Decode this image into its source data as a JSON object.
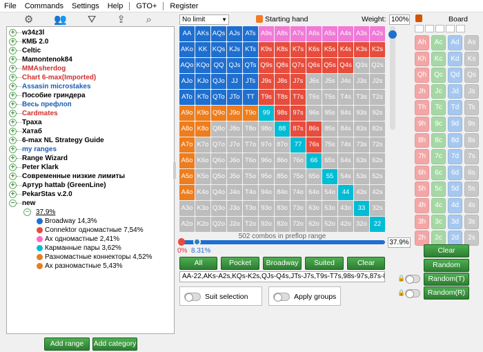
{
  "menu": {
    "items": [
      "File",
      "Commands",
      "Settings",
      "Help",
      "GTO+",
      "Register"
    ]
  },
  "toolbar": {
    "icons": [
      "gear-icon",
      "users-icon",
      "filter-icon",
      "export-icon",
      "search-icon"
    ]
  },
  "tree": {
    "items": [
      {
        "label": "w34z3l",
        "color": "blk",
        "toggle": "+"
      },
      {
        "label": "КМБ 2.0",
        "color": "blk",
        "toggle": "+"
      },
      {
        "label": "Celtic",
        "color": "blk",
        "toggle": "+"
      },
      {
        "label": "Mamontenok84",
        "color": "blk",
        "toggle": "+"
      },
      {
        "label": "MMAsherdog",
        "color": "red",
        "toggle": "+"
      },
      {
        "label": "Chart 6-max(Imported)",
        "color": "red",
        "toggle": "+"
      },
      {
        "label": "Assasin microstakes",
        "color": "blu",
        "toggle": "+"
      },
      {
        "label": "Пособие гриндера",
        "color": "blk",
        "toggle": "+"
      },
      {
        "label": "Весь префлоп",
        "color": "blu",
        "toggle": "+"
      },
      {
        "label": "Cardmates",
        "color": "red",
        "toggle": "+"
      },
      {
        "label": "Траха",
        "color": "blk",
        "toggle": "+"
      },
      {
        "label": "Хатаб",
        "color": "blk",
        "toggle": "+"
      },
      {
        "label": "6-max NL Strategy Guide",
        "color": "blk",
        "toggle": "+"
      },
      {
        "label": "my ranges",
        "color": "blu",
        "toggle": "+"
      },
      {
        "label": "Range Wizard",
        "color": "blk",
        "toggle": "+"
      },
      {
        "label": "Peter Klark",
        "color": "blk",
        "toggle": "+"
      },
      {
        "label": "Современные низкие лимиты",
        "color": "blk",
        "toggle": "+"
      },
      {
        "label": "Артур hattab (GreenLine)",
        "color": "blk",
        "toggle": "+"
      },
      {
        "label": "PekarStas v.2.0",
        "color": "blk",
        "toggle": "+"
      },
      {
        "label": "new",
        "color": "blk",
        "toggle": "−"
      }
    ],
    "node_label": "37.9%",
    "subitems": [
      {
        "label": "Broadway 14,3%",
        "color": "#1e6fd0"
      },
      {
        "label": "Connektor одномастные 7,54%",
        "color": "#e74c3c"
      },
      {
        "label": "Ax одномастные 2,41%",
        "color": "#ff66cc"
      },
      {
        "label": "Карманные пары 3,62%",
        "color": "#00bcd4"
      },
      {
        "label": "Разномастные коннекторы 4,52%",
        "color": "#e67e22"
      },
      {
        "label": "Ax разномастные 5,43%",
        "color": "#e67e22"
      }
    ],
    "add_range": "Add range",
    "add_category": "Add category"
  },
  "controls": {
    "limit": "No limit",
    "starting_hand": "Starting hand",
    "weight_label": "Weight:",
    "weight_value": "100%",
    "combos": "502 combos in preflop range",
    "pct_low": "0%",
    "pct_high": "8.31%",
    "pct_box": "37.9%",
    "range_text": "AA-22,AKs-A2s,KQs-K2s,QJs-Q4s,JTs-J7s,T9s-T7s,98s-97s,87s-86s,",
    "buttons": [
      "All",
      "Pocket",
      "Broadway",
      "Suited",
      "Clear"
    ],
    "suit_selection": "Suit selection",
    "apply_groups": "Apply groups"
  },
  "colors": {
    "blue": "#1e6fd0",
    "red": "#e74c3c",
    "pink": "#f07ad6",
    "cyan": "#00bcd4",
    "orange": "#ee7d1d",
    "gray": "#bdbdbd"
  },
  "grid": [
    [
      "AA b",
      "AKs b",
      "AQs b",
      "AJs b",
      "ATs b",
      "A9s p",
      "A8s p",
      "A7s p",
      "A6s p",
      "A5s p",
      "A4s p",
      "A3s p",
      "A2s p"
    ],
    [
      "AKo b",
      "KK b",
      "KQs b",
      "KJs b",
      "KTs b",
      "K9s r",
      "K8s r",
      "K7s r",
      "K6s r",
      "K5s r",
      "K4s r",
      "K3s r",
      "K2s r"
    ],
    [
      "AQo b",
      "KQo b",
      "QQ b",
      "QJs b",
      "QTs b",
      "Q9s r",
      "Q8s r",
      "Q7s r",
      "Q6s r",
      "Q5s r",
      "Q4s r",
      "Q3s g",
      "Q2s g"
    ],
    [
      "AJo b",
      "KJo b",
      "QJo b",
      "JJ b",
      "JTs b",
      "J9s r",
      "J8s r",
      "J7s r",
      "J6s g",
      "J5s g",
      "J4s g",
      "J3s g",
      "J2s g"
    ],
    [
      "ATo b",
      "KTo b",
      "QTo b",
      "JTo b",
      "TT b",
      "T9s r",
      "T8s r",
      "T7s r",
      "T6s g",
      "T5s g",
      "T4s g",
      "T3s g",
      "T2s g"
    ],
    [
      "A9o o",
      "K9o o",
      "Q9o o",
      "J9o o",
      "T9o o",
      "99 c",
      "98s r",
      "97s r",
      "96s g",
      "95s g",
      "94s g",
      "93s g",
      "92s g"
    ],
    [
      "A8o o",
      "K8o o",
      "Q8o g",
      "J8o g",
      "T8o g",
      "98o g",
      "88 c",
      "87s r",
      "86s r",
      "85s g",
      "84s g",
      "83s g",
      "82s g"
    ],
    [
      "A7o o",
      "K7o g",
      "Q7o g",
      "J7o g",
      "T7o g",
      "97o g",
      "87o g",
      "77 c",
      "76s r",
      "75s g",
      "74s g",
      "73s g",
      "72s g"
    ],
    [
      "A6o o",
      "K6o g",
      "Q6o g",
      "J6o g",
      "T6o g",
      "96o g",
      "86o g",
      "76o g",
      "66 c",
      "65s g",
      "64s g",
      "63s g",
      "62s g"
    ],
    [
      "A5o o",
      "K5o g",
      "Q5o g",
      "J5o g",
      "T5o g",
      "95o g",
      "85o g",
      "75o g",
      "65o g",
      "55 c",
      "54s g",
      "53s g",
      "52s g"
    ],
    [
      "A4o o",
      "K4o g",
      "Q4o g",
      "J4o g",
      "T4o g",
      "94o g",
      "84o g",
      "74o g",
      "64o g",
      "54o g",
      "44 c",
      "43s g",
      "42s g"
    ],
    [
      "A3o g",
      "K3o g",
      "Q3o g",
      "J3o g",
      "T3o g",
      "93o g",
      "83o g",
      "73o g",
      "63o g",
      "53o g",
      "43o g",
      "33 c",
      "32s g"
    ],
    [
      "A2o g",
      "K2o g",
      "Q2o g",
      "J2o g",
      "T2o g",
      "92o g",
      "82o g",
      "72o g",
      "62o g",
      "52o g",
      "42o g",
      "32o g",
      "22 c"
    ]
  ],
  "board": {
    "title": "Board",
    "ranks": [
      "A",
      "K",
      "Q",
      "J",
      "T",
      "9",
      "8",
      "7",
      "6",
      "5",
      "4",
      "3",
      "2"
    ],
    "suits": [
      {
        "s": "h",
        "c": "#f4a6a6"
      },
      {
        "s": "c",
        "c": "#a6d8a6"
      },
      {
        "s": "d",
        "c": "#a6c8f0"
      },
      {
        "s": "s",
        "c": "#c8c8c8"
      }
    ],
    "clear": "Clear",
    "random": "Random",
    "random_t": "Random(T)",
    "random_r": "Random(R)"
  }
}
